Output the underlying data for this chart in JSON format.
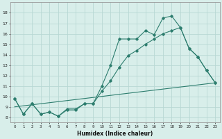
{
  "line1_x": [
    0,
    1,
    2,
    3,
    4,
    5,
    6,
    7,
    8,
    9,
    10,
    11,
    12,
    13,
    14,
    15,
    16,
    17,
    18,
    19,
    20,
    21,
    22,
    23
  ],
  "line1_y": [
    9.8,
    8.3,
    9.3,
    8.3,
    8.5,
    8.1,
    8.7,
    8.7,
    9.3,
    9.3,
    11.0,
    13.0,
    15.5,
    15.5,
    15.5,
    16.3,
    15.9,
    17.5,
    17.7,
    16.6,
    14.6,
    13.8,
    12.5,
    11.3
  ],
  "line2_x": [
    0,
    1,
    2,
    3,
    4,
    5,
    6,
    7,
    8,
    9,
    10,
    11,
    12,
    13,
    14,
    15,
    16,
    17,
    18,
    19,
    20,
    21,
    22,
    23
  ],
  "line2_y": [
    9.8,
    8.3,
    9.3,
    8.3,
    8.5,
    8.1,
    8.8,
    8.8,
    9.3,
    9.3,
    10.5,
    11.5,
    12.8,
    13.9,
    14.4,
    15.0,
    15.5,
    16.0,
    16.3,
    16.6,
    14.6,
    13.8,
    12.5,
    11.3
  ],
  "line3_x": [
    0,
    23
  ],
  "line3_y": [
    9.0,
    11.3
  ],
  "line_color": "#2d7d6e",
  "bg_color": "#d8eeea",
  "grid_color": "#b8d8d4",
  "xlabel": "Humidex (Indice chaleur)",
  "ylim": [
    7.5,
    19.0
  ],
  "xlim": [
    -0.5,
    23.5
  ],
  "yticks": [
    8,
    9,
    10,
    11,
    12,
    13,
    14,
    15,
    16,
    17,
    18
  ],
  "xticks": [
    0,
    1,
    2,
    3,
    4,
    5,
    6,
    7,
    8,
    9,
    10,
    11,
    12,
    13,
    14,
    15,
    16,
    17,
    18,
    19,
    20,
    21,
    22,
    23
  ]
}
